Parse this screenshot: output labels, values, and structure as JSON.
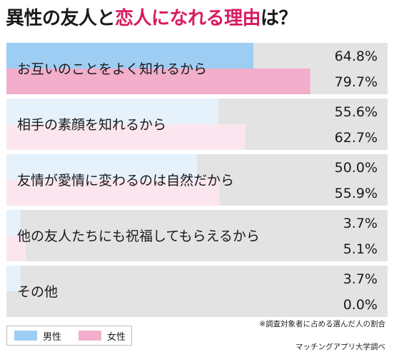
{
  "title_main": "異性の友人と",
  "title_accent": "恋人になれる理由",
  "title_tail": "は？",
  "note": "※調査対象者に占める選んだ人の割合",
  "source": "マッチングアプリ大学調べ",
  "colors": {
    "male": "#9ecdf3",
    "female": "#f2aecb",
    "male_light": "#e5f1fb",
    "female_light": "#fbe6ef",
    "track": "#e3e3e3",
    "accent": "#d81b60"
  },
  "chart_data": {
    "type": "bar",
    "orientation": "horizontal",
    "title": "異性の友人と恋人になれる理由は？",
    "xlim": [
      0,
      100
    ],
    "unit": "%",
    "legend_position": "bottom-left",
    "categories": [
      "お互いのことをよく知れるから",
      "相手の素顔を知れるから",
      "友情が愛情に変わるのは自然だから",
      "他の友人たちにも祝福してもらえるから",
      "その他"
    ],
    "series": [
      {
        "name": "男性",
        "values": [
          64.8,
          55.6,
          50.0,
          3.7,
          3.7
        ],
        "labels": [
          "64.8%",
          "55.6%",
          "50.0%",
          "3.7%",
          "3.7%"
        ]
      },
      {
        "name": "女性",
        "values": [
          79.7,
          62.7,
          55.9,
          5.1,
          0.0
        ],
        "labels": [
          "79.7%",
          "62.7%",
          "55.9%",
          "5.1%",
          "0.0%"
        ]
      }
    ]
  }
}
